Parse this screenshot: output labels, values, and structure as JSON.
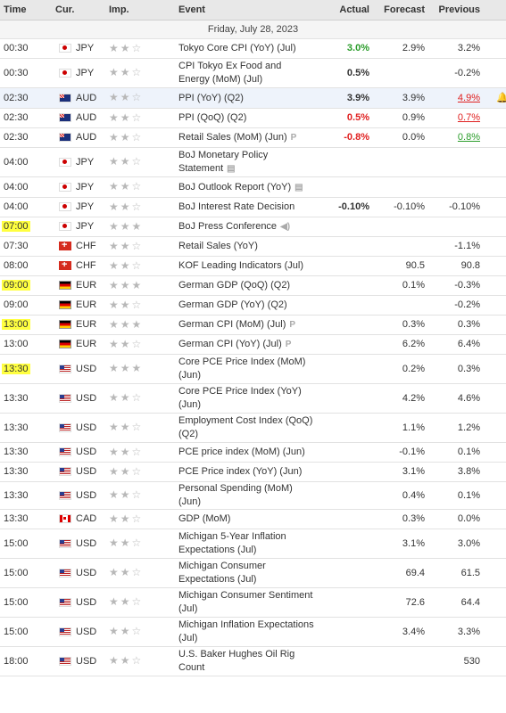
{
  "headers": {
    "time": "Time",
    "cur": "Cur.",
    "imp": "Imp.",
    "event": "Event",
    "actual": "Actual",
    "forecast": "Forecast",
    "previous": "Previous"
  },
  "date_label": "Friday, July 28, 2023",
  "importance_glyph": "★★☆",
  "importance_glyph_high": "★★★",
  "rows": [
    {
      "time": "00:30",
      "cur": "JPY",
      "flag": "jp",
      "imp": 2,
      "event": "Tokyo Core CPI (YoY) (Jul)",
      "actual": "3.0%",
      "actual_c": "green",
      "forecast": "2.9%",
      "previous": "3.2%",
      "prev_c": ""
    },
    {
      "time": "00:30",
      "cur": "JPY",
      "flag": "jp",
      "imp": 2,
      "event": "CPI Tokyo Ex Food and Energy (MoM) (Jul)",
      "actual": "0.5%",
      "actual_c": "bold",
      "forecast": "",
      "previous": "-0.2%",
      "prev_c": ""
    },
    {
      "time": "02:30",
      "cur": "AUD",
      "flag": "au",
      "imp": 2,
      "event": "PPI (YoY) (Q2)",
      "actual": "3.9%",
      "actual_c": "bold",
      "forecast": "3.9%",
      "previous": "4.9%",
      "prev_c": "red-u",
      "sel": true,
      "bell": true
    },
    {
      "time": "02:30",
      "cur": "AUD",
      "flag": "au",
      "imp": 2,
      "event": "PPI (QoQ) (Q2)",
      "actual": "0.5%",
      "actual_c": "red",
      "forecast": "0.9%",
      "previous": "0.7%",
      "prev_c": "red-u"
    },
    {
      "time": "02:30",
      "cur": "AUD",
      "flag": "au",
      "imp": 2,
      "event": "Retail Sales (MoM) (Jun)",
      "icon": "P",
      "actual": "-0.8%",
      "actual_c": "red",
      "forecast": "0.0%",
      "previous": "0.8%",
      "prev_c": "green-u"
    },
    {
      "time": "04:00",
      "cur": "JPY",
      "flag": "jp",
      "imp": 2,
      "event": "BoJ Monetary Policy Statement",
      "icon": "▤",
      "actual": "",
      "actual_c": "",
      "forecast": "",
      "previous": "",
      "prev_c": ""
    },
    {
      "time": "04:00",
      "cur": "JPY",
      "flag": "jp",
      "imp": 2,
      "event": "BoJ Outlook Report (YoY)",
      "icon": "▤",
      "actual": "",
      "actual_c": "",
      "forecast": "",
      "previous": "",
      "prev_c": ""
    },
    {
      "time": "04:00",
      "cur": "JPY",
      "flag": "jp",
      "imp": 2,
      "event": "BoJ Interest Rate Decision",
      "actual": "-0.10%",
      "actual_c": "bold",
      "forecast": "-0.10%",
      "previous": "-0.10%",
      "prev_c": ""
    },
    {
      "time": "07:00",
      "cur": "JPY",
      "flag": "jp",
      "imp": 3,
      "event": "BoJ Press Conference",
      "icon": "◀)",
      "actual": "",
      "actual_c": "",
      "forecast": "",
      "previous": "",
      "prev_c": "",
      "hl": true
    },
    {
      "time": "07:30",
      "cur": "CHF",
      "flag": "ch",
      "imp": 2,
      "event": "Retail Sales (YoY)",
      "actual": "",
      "actual_c": "",
      "forecast": "",
      "previous": "-1.1%",
      "prev_c": ""
    },
    {
      "time": "08:00",
      "cur": "CHF",
      "flag": "ch",
      "imp": 2,
      "event": "KOF Leading Indicators (Jul)",
      "actual": "",
      "actual_c": "",
      "forecast": "90.5",
      "previous": "90.8",
      "prev_c": ""
    },
    {
      "time": "09:00",
      "cur": "EUR",
      "flag": "de",
      "imp": 3,
      "event": "German GDP (QoQ) (Q2)",
      "actual": "",
      "actual_c": "",
      "forecast": "0.1%",
      "previous": "-0.3%",
      "prev_c": "",
      "hl": true
    },
    {
      "time": "09:00",
      "cur": "EUR",
      "flag": "de",
      "imp": 2,
      "event": "German GDP (YoY) (Q2)",
      "actual": "",
      "actual_c": "",
      "forecast": "",
      "previous": "-0.2%",
      "prev_c": ""
    },
    {
      "time": "13:00",
      "cur": "EUR",
      "flag": "de",
      "imp": 3,
      "event": "German CPI (MoM) (Jul)",
      "icon": "P",
      "actual": "",
      "actual_c": "",
      "forecast": "0.3%",
      "previous": "0.3%",
      "prev_c": "",
      "hl": true
    },
    {
      "time": "13:00",
      "cur": "EUR",
      "flag": "de",
      "imp": 2,
      "event": "German CPI (YoY) (Jul)",
      "icon": "P",
      "actual": "",
      "actual_c": "",
      "forecast": "6.2%",
      "previous": "6.4%",
      "prev_c": ""
    },
    {
      "time": "13:30",
      "cur": "USD",
      "flag": "us",
      "imp": 3,
      "event": "Core PCE Price Index (MoM) (Jun)",
      "actual": "",
      "actual_c": "",
      "forecast": "0.2%",
      "previous": "0.3%",
      "prev_c": "",
      "hl": true
    },
    {
      "time": "13:30",
      "cur": "USD",
      "flag": "us",
      "imp": 2,
      "event": "Core PCE Price Index (YoY) (Jun)",
      "actual": "",
      "actual_c": "",
      "forecast": "4.2%",
      "previous": "4.6%",
      "prev_c": ""
    },
    {
      "time": "13:30",
      "cur": "USD",
      "flag": "us",
      "imp": 2,
      "event": "Employment Cost Index (QoQ) (Q2)",
      "actual": "",
      "actual_c": "",
      "forecast": "1.1%",
      "previous": "1.2%",
      "prev_c": ""
    },
    {
      "time": "13:30",
      "cur": "USD",
      "flag": "us",
      "imp": 2,
      "event": "PCE price index (MoM) (Jun)",
      "actual": "",
      "actual_c": "",
      "forecast": "-0.1%",
      "previous": "0.1%",
      "prev_c": ""
    },
    {
      "time": "13:30",
      "cur": "USD",
      "flag": "us",
      "imp": 2,
      "event": "PCE Price index (YoY) (Jun)",
      "actual": "",
      "actual_c": "",
      "forecast": "3.1%",
      "previous": "3.8%",
      "prev_c": ""
    },
    {
      "time": "13:30",
      "cur": "USD",
      "flag": "us",
      "imp": 2,
      "event": "Personal Spending (MoM) (Jun)",
      "actual": "",
      "actual_c": "",
      "forecast": "0.4%",
      "previous": "0.1%",
      "prev_c": ""
    },
    {
      "time": "13:30",
      "cur": "CAD",
      "flag": "ca",
      "imp": 2,
      "event": "GDP (MoM)",
      "actual": "",
      "actual_c": "",
      "forecast": "0.3%",
      "previous": "0.0%",
      "prev_c": ""
    },
    {
      "time": "15:00",
      "cur": "USD",
      "flag": "us",
      "imp": 2,
      "event": "Michigan 5-Year Inflation Expectations (Jul)",
      "actual": "",
      "actual_c": "",
      "forecast": "3.1%",
      "previous": "3.0%",
      "prev_c": ""
    },
    {
      "time": "15:00",
      "cur": "USD",
      "flag": "us",
      "imp": 2,
      "event": "Michigan Consumer Expectations (Jul)",
      "actual": "",
      "actual_c": "",
      "forecast": "69.4",
      "previous": "61.5",
      "prev_c": ""
    },
    {
      "time": "15:00",
      "cur": "USD",
      "flag": "us",
      "imp": 2,
      "event": "Michigan Consumer Sentiment (Jul)",
      "actual": "",
      "actual_c": "",
      "forecast": "72.6",
      "previous": "64.4",
      "prev_c": ""
    },
    {
      "time": "15:00",
      "cur": "USD",
      "flag": "us",
      "imp": 2,
      "event": "Michigan Inflation Expectations (Jul)",
      "actual": "",
      "actual_c": "",
      "forecast": "3.4%",
      "previous": "3.3%",
      "prev_c": ""
    },
    {
      "time": "18:00",
      "cur": "USD",
      "flag": "us",
      "imp": 2,
      "event": "U.S. Baker Hughes Oil Rig Count",
      "actual": "",
      "actual_c": "",
      "forecast": "",
      "previous": "530",
      "prev_c": ""
    }
  ]
}
